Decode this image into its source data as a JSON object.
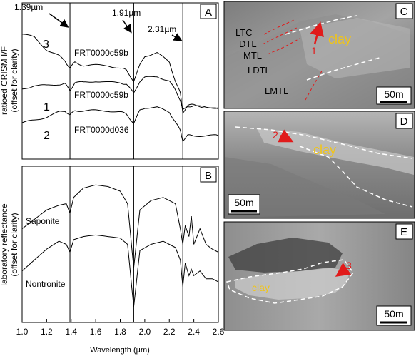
{
  "panels": {
    "A": {
      "label": "A",
      "ylabel_line1": "ratioed CRISM I/F",
      "ylabel_line2": "(offset for clarity)",
      "markers": [
        {
          "wavelength": 1.39,
          "label": "1.39µm"
        },
        {
          "wavelength": 1.91,
          "label": "1.91µm"
        },
        {
          "wavelength": 2.31,
          "label": "2.31µm"
        }
      ],
      "spectra": [
        {
          "number": "3",
          "id": "FRT0000c59b"
        },
        {
          "number": "1",
          "id": "FRT0000c59b"
        },
        {
          "number": "2",
          "id": "FRT0000d036"
        }
      ]
    },
    "B": {
      "label": "B",
      "ylabel_line1": "laboratory reflectance",
      "ylabel_line2": "(offset for clarity)",
      "spectra": [
        {
          "name": "Saponite"
        },
        {
          "name": "Nontronite"
        }
      ]
    },
    "C": {
      "label": "C",
      "units": [
        "LTC",
        "DTL",
        "MTL",
        "LDTL",
        "LMTL"
      ],
      "annotation_number": "1",
      "annotation_text": "clay",
      "scale": "50m"
    },
    "D": {
      "label": "D",
      "annotation_number": "2",
      "annotation_text": "clay",
      "scale": "50m"
    },
    "E": {
      "label": "E",
      "annotation_number": "3",
      "annotation_text": "clay",
      "scale": "50m"
    }
  },
  "chart_data": [
    {
      "type": "line",
      "panel": "A",
      "xlim": [
        1.0,
        2.6
      ],
      "x": [
        1.0,
        1.1,
        1.2,
        1.3,
        1.35,
        1.39,
        1.43,
        1.5,
        1.6,
        1.7,
        1.8,
        1.85,
        1.91,
        1.96,
        2.0,
        2.1,
        2.2,
        2.25,
        2.29,
        2.31,
        2.35,
        2.4,
        2.5,
        2.6
      ],
      "series": [
        {
          "name": "3",
          "values": [
            0.8,
            0.78,
            0.7,
            0.66,
            0.63,
            0.58,
            0.62,
            0.6,
            0.6,
            0.6,
            0.58,
            0.57,
            0.5,
            0.6,
            0.66,
            0.68,
            0.62,
            0.5,
            0.42,
            0.3,
            0.34,
            0.35,
            0.33,
            0.32
          ]
        },
        {
          "name": "1",
          "values": [
            0.45,
            0.47,
            0.47,
            0.48,
            0.48,
            0.44,
            0.49,
            0.49,
            0.5,
            0.49,
            0.49,
            0.48,
            0.42,
            0.5,
            0.52,
            0.53,
            0.5,
            0.44,
            0.38,
            0.31,
            0.34,
            0.34,
            0.33,
            0.33
          ]
        },
        {
          "name": "2",
          "values": [
            0.23,
            0.25,
            0.27,
            0.3,
            0.31,
            0.28,
            0.31,
            0.31,
            0.31,
            0.31,
            0.3,
            0.29,
            0.23,
            0.31,
            0.33,
            0.33,
            0.3,
            0.24,
            0.18,
            0.12,
            0.15,
            0.15,
            0.15,
            0.15
          ]
        }
      ]
    },
    {
      "type": "line",
      "panel": "B",
      "xlim": [
        1.0,
        2.6
      ],
      "xlabel": "Wavelength (µm)",
      "xticks": [
        "1.0",
        "1.2",
        "1.4",
        "1.6",
        "1.8",
        "2.0",
        "2.2",
        "2.4",
        "2.6"
      ],
      "x": [
        1.0,
        1.1,
        1.2,
        1.3,
        1.36,
        1.39,
        1.42,
        1.5,
        1.6,
        1.7,
        1.8,
        1.86,
        1.91,
        1.96,
        2.05,
        2.15,
        2.25,
        2.29,
        2.31,
        2.33,
        2.36,
        2.38,
        2.4,
        2.45,
        2.5,
        2.55,
        2.6
      ],
      "series": [
        {
          "name": "Saponite",
          "values": [
            0.6,
            0.66,
            0.72,
            0.75,
            0.76,
            0.7,
            0.8,
            0.86,
            0.88,
            0.87,
            0.84,
            0.76,
            0.35,
            0.72,
            0.78,
            0.8,
            0.76,
            0.6,
            0.5,
            0.62,
            0.55,
            0.68,
            0.5,
            0.6,
            0.5,
            0.47,
            0.45
          ]
        },
        {
          "name": "Nontronite",
          "values": [
            0.33,
            0.4,
            0.47,
            0.52,
            0.5,
            0.45,
            0.53,
            0.55,
            0.56,
            0.55,
            0.54,
            0.5,
            0.1,
            0.46,
            0.5,
            0.52,
            0.48,
            0.4,
            0.23,
            0.38,
            0.3,
            0.34,
            0.3,
            0.33,
            0.28,
            0.28,
            0.26
          ]
        }
      ]
    }
  ]
}
